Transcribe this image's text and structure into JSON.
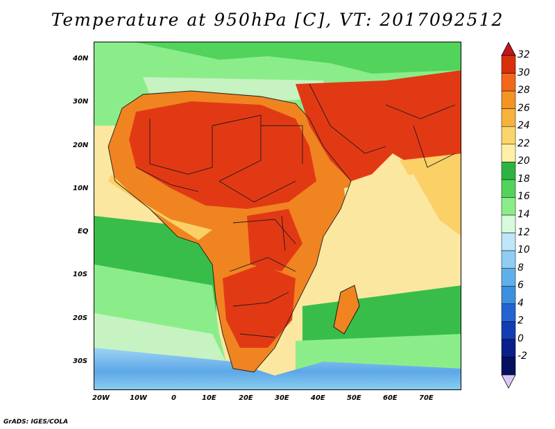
{
  "title": "Temperature at 950hPa [C], VT: 2017092512",
  "credit": "GrADS: IGES/COLA",
  "y_ticks": [
    "40N",
    "30N",
    "20N",
    "10N",
    "EQ",
    "10S",
    "20S",
    "30S"
  ],
  "x_ticks": [
    "20W",
    "10W",
    "0",
    "10E",
    "20E",
    "30E",
    "40E",
    "50E",
    "60E",
    "70E"
  ],
  "colorbar": {
    "labels": [
      "32",
      "30",
      "28",
      "26",
      "24",
      "22",
      "20",
      "18",
      "16",
      "14",
      "12",
      "10",
      "8",
      "6",
      "4",
      "2",
      "0",
      "-2"
    ],
    "colors": [
      "#d9300c",
      "#f2671b",
      "#f49423",
      "#f6b23c",
      "#fbd56b",
      "#fdefa5",
      "#2eb342",
      "#52d35b",
      "#8bed8a",
      "#d6fadb",
      "#bde6f7",
      "#8fcdf2",
      "#5eb0ea",
      "#3e8fe0",
      "#2464d2",
      "#133eb3",
      "#0b1f8a",
      "#07105e"
    ],
    "top_arrow_color": "#c0171a",
    "bottom_arrow_color": "#d9c8f7"
  },
  "map_colors": {
    "ocean_south": "#5ea7e8",
    "ocean_cool": "#9dd3f3",
    "ocean_green": "#39bd4a",
    "sea_light": "#c6f3c1",
    "land_hot": "#e23915",
    "land_warm": "#f08421",
    "land_mild": "#fad067",
    "ocean_warm": "#fbe7a0",
    "border": "#1a1a1a"
  }
}
